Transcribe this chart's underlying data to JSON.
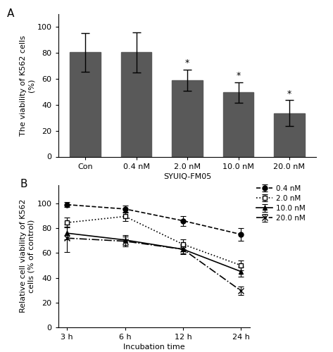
{
  "panel_A": {
    "categories": [
      "Con",
      "0.4 nM",
      "2.0 nM",
      "10.0 nM",
      "20.0 nM"
    ],
    "values": [
      80.5,
      80.5,
      59.0,
      49.5,
      33.5
    ],
    "errors": [
      15.0,
      15.5,
      8.0,
      8.0,
      10.0
    ],
    "bar_color": "#595959",
    "ylabel": "The viability of K562 cells\n(%)",
    "xlabel": "SYUIQ-FM05",
    "ylim": [
      0,
      110
    ],
    "yticks": [
      0,
      20,
      40,
      60,
      80,
      100
    ],
    "significant": [
      false,
      false,
      true,
      true,
      true
    ],
    "panel_label": "A"
  },
  "panel_B": {
    "time_points": [
      "3 h",
      "6 h",
      "12 h",
      "24 h"
    ],
    "series": [
      {
        "label": "0.4 nM",
        "values": [
          99.0,
          95.5,
          86.0,
          75.0
        ],
        "errors": [
          2.0,
          3.0,
          4.0,
          5.0
        ],
        "linestyle": "--",
        "marker": "o",
        "mfc": "black"
      },
      {
        "label": "2.0 nM",
        "values": [
          84.5,
          89.5,
          67.0,
          50.0
        ],
        "errors": [
          4.0,
          3.5,
          4.0,
          4.0
        ],
        "linestyle": ":",
        "marker": "s",
        "mfc": "white"
      },
      {
        "label": "10.0 nM",
        "values": [
          76.0,
          70.5,
          63.0,
          45.0
        ],
        "errors": [
          5.0,
          4.0,
          4.0,
          4.0
        ],
        "linestyle": "-",
        "marker": "^",
        "mfc": "black"
      },
      {
        "label": "20.0 nM",
        "values": [
          72.0,
          69.5,
          63.0,
          29.5
        ],
        "errors": [
          11.0,
          4.0,
          3.5,
          3.5
        ],
        "linestyle": "-.",
        "marker": "x",
        "mfc": "black"
      }
    ],
    "ylabel": "Relative cell viability of K562\ncells (% of control)",
    "xlabel": "Incubation time",
    "ylim": [
      0,
      115
    ],
    "yticks": [
      0,
      20,
      40,
      60,
      80,
      100
    ],
    "panel_label": "B"
  },
  "figure_bg": "#ffffff"
}
